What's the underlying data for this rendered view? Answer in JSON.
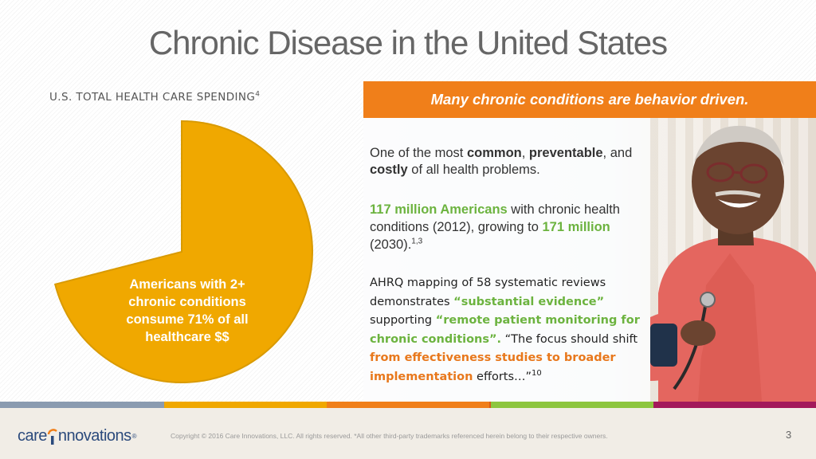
{
  "slide": {
    "title": "Chronic Disease in the United States",
    "spending_label": "U.S. TOTAL HEALTH CARE SPENDING",
    "spending_ref": "4",
    "pie": {
      "fraction": 0.71,
      "text": "Americans with 2+ chronic conditions consume 71% of all healthcare $$",
      "color": "#f0a800"
    },
    "panel_header": "Many chronic conditions are behavior driven.",
    "para1": {
      "t1": "One of the most ",
      "b1": "common",
      "t2": ", ",
      "b2": "preventable",
      "t3": ", and ",
      "b3": "costly",
      "t4": " of all health problems."
    },
    "para2": {
      "g1": "117 million Americans",
      "t1": " with chronic health conditions (2012), growing to ",
      "g2": "171 million",
      "t2": " (2030).",
      "ref": "1,3"
    },
    "para3": {
      "t1": "AHRQ mapping of 58 systematic reviews demonstrates ",
      "g1": "“substantial evidence”",
      "t2": " supporting ",
      "g2": "“remote patient monitoring for chronic conditions”.",
      "t3": " “The focus should shift ",
      "o1": "from effectiveness studies to broader implementation",
      "t4": " efforts…”",
      "ref": "10"
    }
  },
  "footer": {
    "logo_left": "care",
    "logo_right": "nnovations",
    "logo_reg": "®",
    "copyright": "Copyright © 2016 Care Innovations, LLC. All rights reserved. *All other third-party trademarks referenced herein belong to their respective owners.",
    "page_number": "3"
  },
  "colors": {
    "accent_orange": "#f07f1a",
    "green": "#6cb33f",
    "stripe": [
      "#8a9bb0",
      "#f0a800",
      "#f07f1a",
      "#d85a1a",
      "#8dc63f",
      "#a3195b"
    ]
  }
}
